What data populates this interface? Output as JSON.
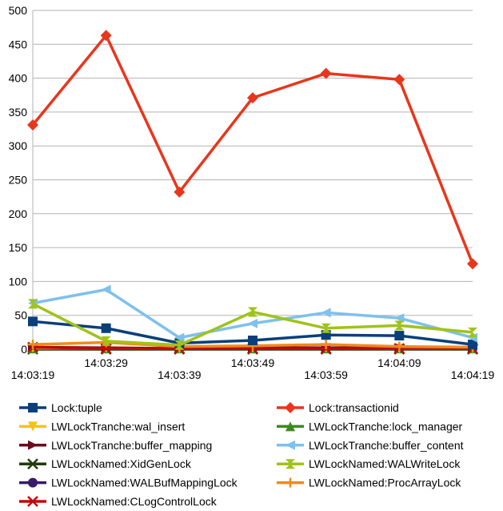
{
  "chart_data": {
    "type": "line",
    "title": "",
    "xlabel": "",
    "ylabel": "",
    "ylim": [
      0,
      500
    ],
    "y_ticks": [
      0,
      50,
      100,
      150,
      200,
      250,
      300,
      350,
      400,
      450,
      500
    ],
    "grid": "horizontal",
    "legend_position": "bottom",
    "x_tick_labels_upper": [
      "14:03:29",
      "14:03:49",
      "14:04:09"
    ],
    "x_tick_labels_lower": [
      "14:03:19",
      "14:03:39",
      "14:03:59",
      "14:04:19"
    ],
    "x": [
      "14:03:19",
      "14:03:29",
      "14:03:39",
      "14:03:49",
      "14:03:59",
      "14:04:09",
      "14:04:19"
    ],
    "series": [
      {
        "name": "Lock:tuple",
        "color": "#0a3f7a",
        "marker": "square",
        "values": [
          41,
          31,
          9,
          13,
          21,
          20,
          7
        ]
      },
      {
        "name": "Lock:transactionid",
        "color": "#e8361c",
        "marker": "diamond",
        "values": [
          331,
          463,
          232,
          371,
          407,
          398,
          126
        ]
      },
      {
        "name": "LWLockTranche:wal_insert",
        "color": "#f4c40f",
        "marker": "triangle-down",
        "values": [
          2,
          2,
          1,
          2,
          2,
          1,
          1
        ]
      },
      {
        "name": "LWLockTranche:lock_manager",
        "color": "#3b8a1e",
        "marker": "triangle-up",
        "values": [
          1,
          1,
          1,
          1,
          1,
          1,
          1
        ]
      },
      {
        "name": "LWLockTranche:buffer_mapping",
        "color": "#6b0a1a",
        "marker": "triangle-right",
        "values": [
          3,
          2,
          1,
          2,
          2,
          2,
          1
        ]
      },
      {
        "name": "LWLockTranche:buffer_content",
        "color": "#7ec0ee",
        "marker": "triangle-left",
        "values": [
          68,
          88,
          17,
          38,
          54,
          46,
          17
        ]
      },
      {
        "name": "LWLockNamed:XidGenLock",
        "color": "#233a0e",
        "marker": "x",
        "values": [
          0,
          0,
          0,
          0,
          0,
          0,
          0
        ]
      },
      {
        "name": "LWLockNamed:WALWriteLock",
        "color": "#9fc31a",
        "marker": "hourglass",
        "values": [
          67,
          12,
          6,
          55,
          31,
          35,
          25
        ]
      },
      {
        "name": "LWLockNamed:WALBufMappingLock",
        "color": "#3a1a6a",
        "marker": "circle",
        "values": [
          1,
          1,
          1,
          1,
          1,
          1,
          1
        ]
      },
      {
        "name": "LWLockNamed:ProcArrayLock",
        "color": "#f08a1c",
        "marker": "plus",
        "values": [
          7,
          10,
          4,
          5,
          7,
          4,
          3
        ]
      },
      {
        "name": "LWLockNamed:CLogControlLock",
        "color": "#c00a0a",
        "marker": "x",
        "values": [
          3,
          1,
          1,
          1,
          1,
          1,
          1
        ]
      }
    ]
  }
}
